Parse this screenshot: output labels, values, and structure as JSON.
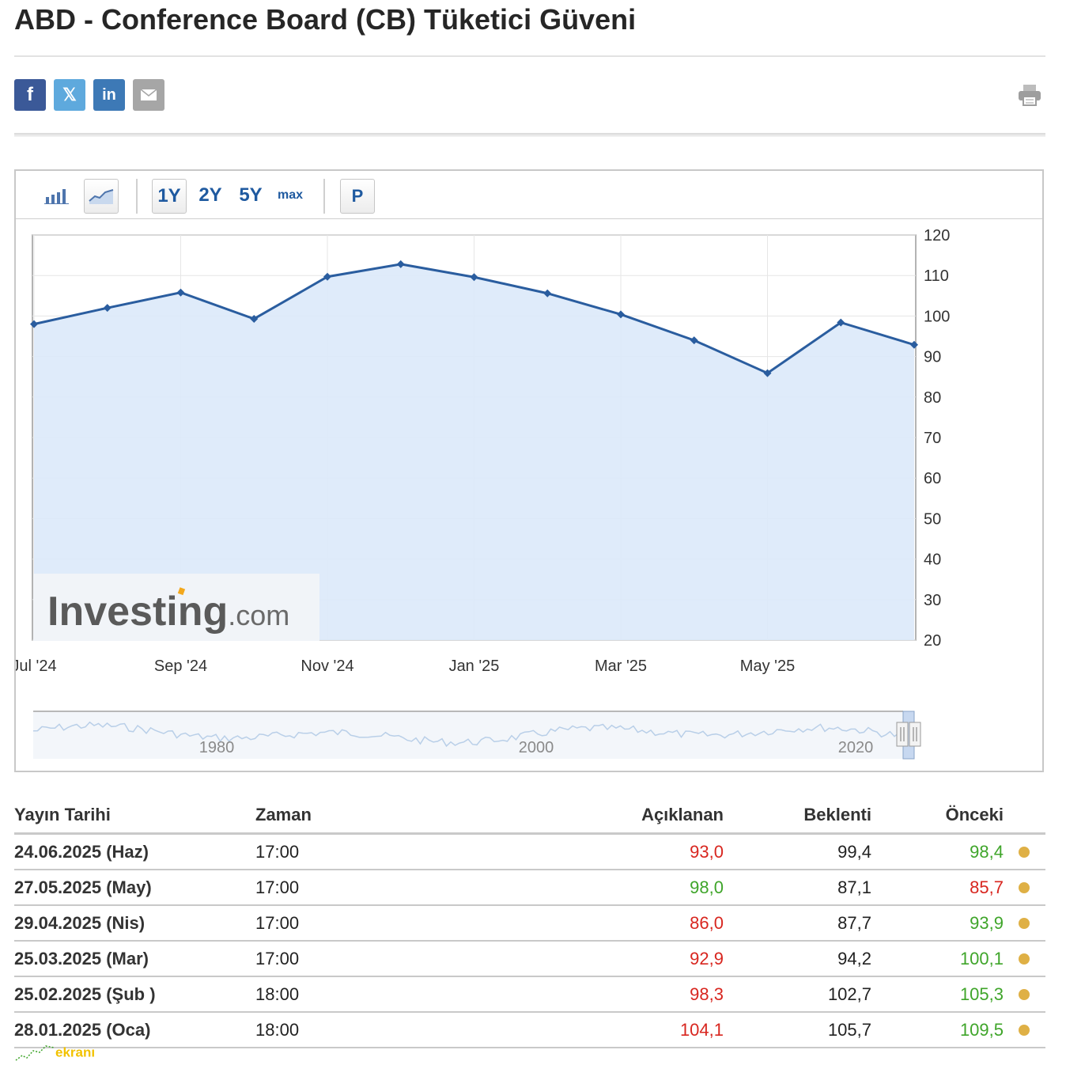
{
  "page": {
    "title": "ABD - Conference Board (CB) Tüketici Güveni"
  },
  "share": {
    "facebook_icon": "f",
    "twitter_icon": "𝕏",
    "linkedin_icon": "in",
    "email_icon": "envelope-icon",
    "print_icon": "printer-icon"
  },
  "toolbar": {
    "bar_chart_icon": "bar-chart-icon",
    "line_chart_icon": "line-chart-icon",
    "range_1y": "1Y",
    "range_2y": "2Y",
    "range_5y": "5Y",
    "range_max": "max",
    "preliminary_button": "P"
  },
  "chart_data": {
    "type": "area",
    "title": "",
    "xlabel": "",
    "ylabel": "",
    "x": [
      "Jul '24",
      "Aug '24",
      "Sep '24",
      "Oct '24",
      "Nov '24",
      "Dec '24",
      "Jan '25",
      "Feb '25",
      "Mar '25",
      "Apr '25",
      "May '25",
      "Jun '25",
      "Jul '25"
    ],
    "values": [
      98.0,
      102.0,
      105.8,
      99.3,
      109.7,
      112.8,
      109.6,
      105.6,
      100.4,
      94.0,
      85.9,
      98.4,
      92.9
    ],
    "x_tick_labels": [
      "Jul '24",
      "Sep '24",
      "Nov '24",
      "Jan '25",
      "Mar '25",
      "May '25"
    ],
    "y_ticks": [
      20,
      30,
      40,
      50,
      60,
      70,
      80,
      90,
      100,
      110,
      120
    ],
    "ylim": [
      20,
      120
    ],
    "y_axis_side": "right",
    "grid": true,
    "line_color": "#2a5d9f",
    "fill_color": "#dbe9fa",
    "watermark": "Investing.com",
    "navigator": {
      "labels": [
        "1980",
        "2000",
        "2020"
      ]
    }
  },
  "table": {
    "headers": [
      "Yayın Tarihi",
      "Zaman",
      "Açıklanan",
      "Beklenti",
      "Önceki"
    ],
    "rows": [
      {
        "date": "24.06.2025 (Haz)",
        "time": "17:00",
        "actual": "93,0",
        "actual_color": "red",
        "forecast": "99,4",
        "previous": "98,4",
        "previous_color": "green"
      },
      {
        "date": "27.05.2025 (May)",
        "time": "17:00",
        "actual": "98,0",
        "actual_color": "green",
        "forecast": "87,1",
        "previous": "85,7",
        "previous_color": "red"
      },
      {
        "date": "29.04.2025 (Nis)",
        "time": "17:00",
        "actual": "86,0",
        "actual_color": "red",
        "forecast": "87,7",
        "previous": "93,9",
        "previous_color": "green"
      },
      {
        "date": "25.03.2025 (Mar)",
        "time": "17:00",
        "actual": "92,9",
        "actual_color": "red",
        "forecast": "94,2",
        "previous": "100,1",
        "previous_color": "green"
      },
      {
        "date": "25.02.2025 (Şub )",
        "time": "18:00",
        "actual": "98,3",
        "actual_color": "red",
        "forecast": "102,7",
        "previous": "105,3",
        "previous_color": "green"
      },
      {
        "date": "28.01.2025 (Oca)",
        "time": "18:00",
        "actual": "104,1",
        "actual_color": "red",
        "forecast": "105,7",
        "previous": "109,5",
        "previous_color": "green"
      }
    ]
  },
  "footer": {
    "watermark_text": "ekranı"
  },
  "colors": {
    "red": "#d8261f",
    "green": "#3fa52a",
    "importance_dot": "#dfb045",
    "accent": "#1f5aa0"
  }
}
